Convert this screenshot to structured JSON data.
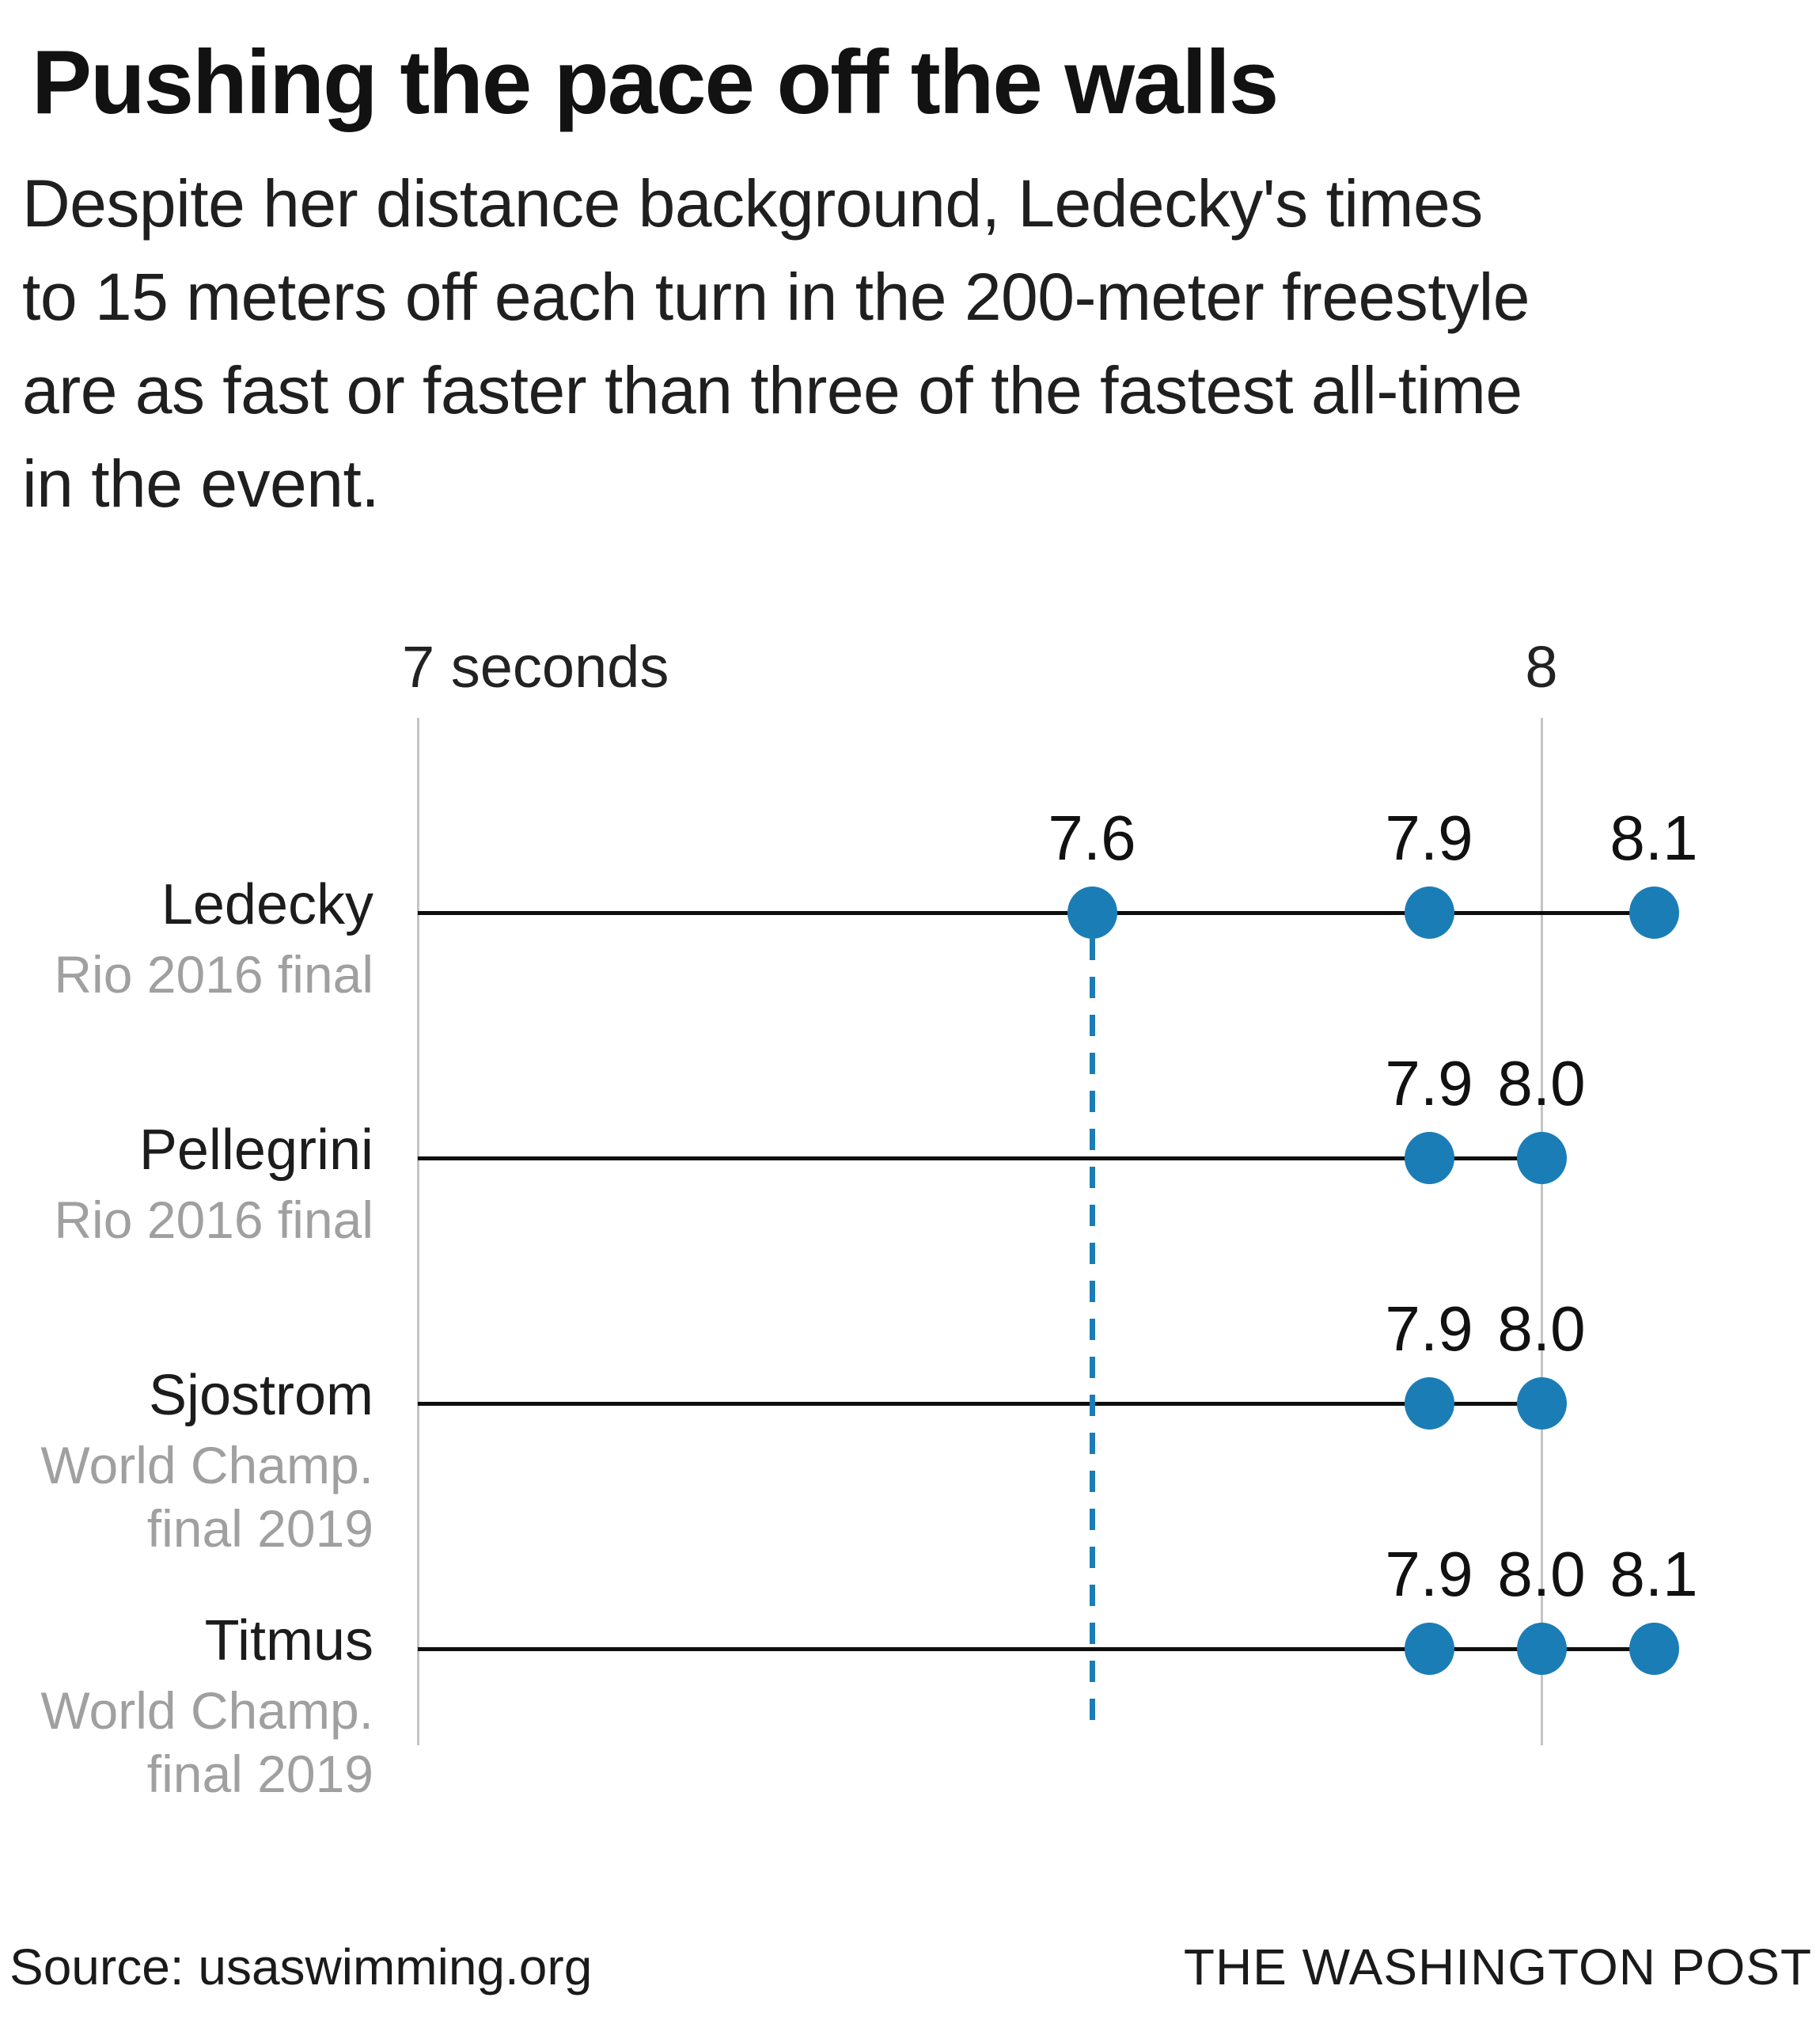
{
  "header": {
    "title": "Pushing the pace off the walls",
    "subtitle_lines": [
      "Despite her distance background, Ledecky's times",
      "to 15 meters off each turn in the 200-meter freestyle",
      "are as fast or faster than three of the fastest all-time",
      "in the event."
    ]
  },
  "footer": {
    "source": "Source: usaswimming.org",
    "credit": "THE WASHINGTON POST"
  },
  "colors": {
    "accent_blue": "#1b7db6",
    "row_line_black": "#0e0e0e",
    "grid_gray": "#c4c4c4",
    "sublabel_gray": "#a0a0a0",
    "text_black": "#111111"
  },
  "chart_data": {
    "type": "scatter",
    "subtype": "dot-plot",
    "title": "Pushing the pace off the walls",
    "xlabel": "seconds",
    "ylabel": "",
    "xlim": [
      7.0,
      8.24
    ],
    "grid": "vertical-ticks-only",
    "x_axis": {
      "ticks": [
        {
          "value": 7.0,
          "label": "7 seconds"
        },
        {
          "value": 8.0,
          "label": "8"
        }
      ]
    },
    "reference_line": {
      "value": 7.6,
      "style": "dashed",
      "meaning": "Ledecky's fastest time to 15 meters off a turn"
    },
    "rows": [
      {
        "name": "Ledecky",
        "detail": [
          "Rio 2016 final"
        ],
        "values": [
          7.6,
          7.9,
          8.1
        ],
        "point_labels": [
          "7.6",
          "7.9",
          "8.1"
        ]
      },
      {
        "name": "Pellegrini",
        "detail": [
          "Rio 2016 final"
        ],
        "values": [
          7.9,
          8.0
        ],
        "point_labels": [
          "7.9",
          "8.0"
        ]
      },
      {
        "name": "Sjostrom",
        "detail": [
          "World Champ.",
          "final 2019"
        ],
        "values": [
          7.9,
          8.0
        ],
        "point_labels": [
          "7.9",
          "8.0"
        ]
      },
      {
        "name": "Titmus",
        "detail": [
          "World Champ.",
          "final 2019"
        ],
        "values": [
          7.9,
          8.0,
          8.1
        ],
        "point_labels": [
          "7.9",
          "8.0",
          "8.1"
        ]
      }
    ]
  }
}
